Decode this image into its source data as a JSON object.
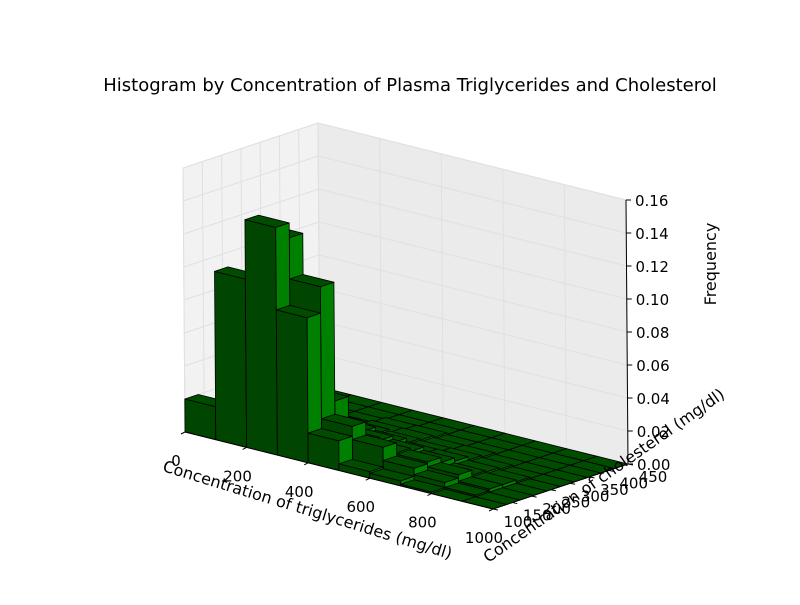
{
  "chart_data": {
    "type": "bar3d",
    "title": "Histogram by Concentration of Plasma Triglycerides and Cholesterol",
    "xlabel": "Concentration of triglycerides (mg/dl)",
    "ylabel": "Concentration of cholesterol (mg/dl)",
    "zlabel": "Frequency",
    "xlim": [
      0,
      1000
    ],
    "ylim": [
      100,
      450
    ],
    "zlim": [
      0,
      0.16
    ],
    "x_ticks": [
      "0",
      "200",
      "400",
      "600",
      "800",
      "1000"
    ],
    "y_ticks": [
      "100",
      "150",
      "200",
      "250",
      "300",
      "350",
      "400",
      "450"
    ],
    "z_ticks": [
      "0.00",
      "0.02",
      "0.04",
      "0.06",
      "0.08",
      "0.10",
      "0.12",
      "0.14",
      "0.16"
    ],
    "x_bin_edges": [
      0,
      100,
      200,
      300,
      400,
      500,
      600,
      700,
      800,
      900,
      1000
    ],
    "y_bin_edges": [
      100,
      135,
      170,
      205,
      240,
      275,
      310,
      345,
      380,
      415,
      450
    ],
    "grid": true,
    "bar_color": "#008000",
    "edge_color": "#000000",
    "frequency": [
      [
        0.02,
        0.102,
        0.138,
        0.088,
        0.018,
        0.004,
        0.003,
        0.001,
        0.0,
        0.0
      ],
      [
        0.008,
        0.046,
        0.129,
        0.104,
        0.024,
        0.016,
        0.008,
        0.004,
        0.001,
        0.0
      ],
      [
        0.002,
        0.01,
        0.03,
        0.032,
        0.012,
        0.01,
        0.009,
        0.006,
        0.002,
        0.0
      ],
      [
        0.0,
        0.002,
        0.012,
        0.015,
        0.01,
        0.008,
        0.006,
        0.003,
        0.002,
        0.0
      ],
      [
        0.0,
        0.001,
        0.004,
        0.008,
        0.006,
        0.004,
        0.004,
        0.002,
        0.001,
        0.0
      ],
      [
        0.0,
        0.0,
        0.002,
        0.004,
        0.003,
        0.002,
        0.002,
        0.001,
        0.0,
        0.0
      ],
      [
        0.0,
        0.0,
        0.001,
        0.002,
        0.002,
        0.001,
        0.001,
        0.0,
        0.0,
        0.0
      ],
      [
        0.0,
        0.0,
        0.0,
        0.001,
        0.001,
        0.0,
        0.0,
        0.0,
        0.0,
        0.0
      ],
      [
        0.0,
        0.0,
        0.0,
        0.0,
        0.0,
        0.0,
        0.0,
        0.0,
        0.0,
        0.0
      ],
      [
        0.0,
        0.0,
        0.0,
        0.0,
        0.0,
        0.0,
        0.0,
        0.0,
        0.0,
        0.0
      ]
    ]
  }
}
